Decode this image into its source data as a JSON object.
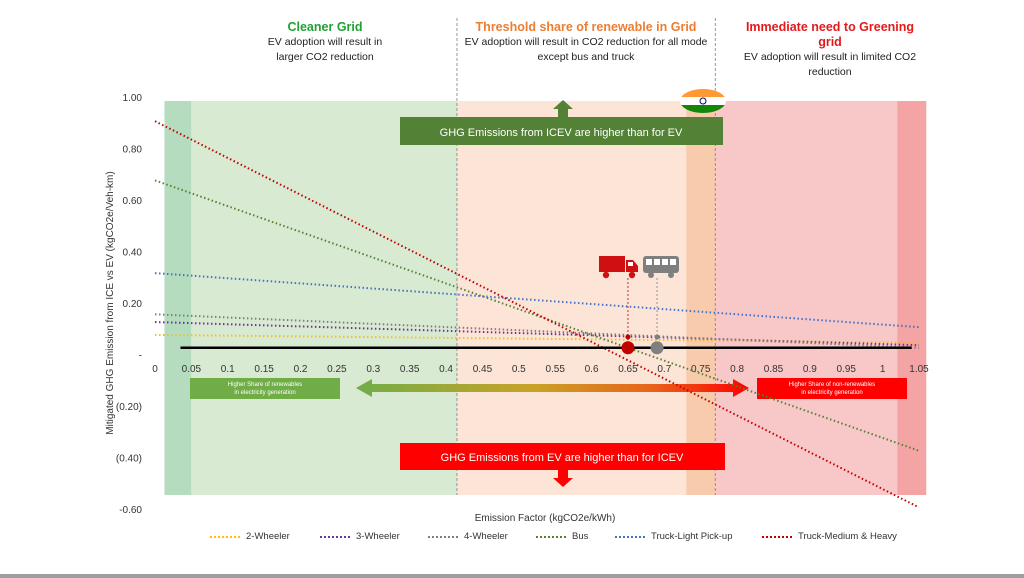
{
  "zones": {
    "clean": {
      "title": "Cleaner Grid",
      "desc1": "EV adoption will result in",
      "desc2": "larger CO2 reduction",
      "color": "#21a035"
    },
    "threshold": {
      "title": "Threshold share of renewable in Grid",
      "desc1": "EV adoption will result in CO2 reduction for all mode",
      "desc2": "except bus and truck",
      "color": "#ed7d31"
    },
    "immediate": {
      "title1": "Immediate need to Greening",
      "title2": "grid",
      "desc1": "EV adoption will result in limited CO2",
      "desc2": "reduction",
      "color": "#e31a1c"
    }
  },
  "banners": {
    "top": "GHG Emissions from ICEV are higher than for EV",
    "bottom": "GHG Emissions from EV are higher than for ICEV",
    "left": [
      "Higher Share of renewables",
      "in electricity generation"
    ],
    "right": [
      "Higher Share of non-renewables",
      "in electricity generation"
    ]
  },
  "colors": {
    "green_band": "#d9ead3",
    "green_dark_band": "#b5dcbf",
    "peach_band": "#fce4d6",
    "orange_band": "#f8cbad",
    "pink_band": "#f8c8c8",
    "red_band": "#f4a4a4",
    "banner_green": "#538135",
    "banner_red": "#ff0000",
    "small_green": "#70ad47"
  },
  "icons": [
    "india-flag-icon",
    "truck-icon",
    "bus-icon"
  ],
  "markers": {
    "truck_x": 0.65,
    "bus_x": 0.69
  },
  "chart_data": {
    "type": "line",
    "xlabel": "Emission Factor (kgCO2e/kWh)",
    "ylabel": "Mitigated GHG Emission from ICE vs EV (kgCO2e/Veh-km)",
    "xlim": [
      0,
      1.05
    ],
    "ylim": [
      -0.6,
      1.0
    ],
    "x_ticks": [
      "0",
      "0.05",
      "0.1",
      "0.15",
      "0.2",
      "0.25",
      "0.3",
      "0.35",
      "0.4",
      "0.45",
      "0.5",
      "0.55",
      "0.6",
      "0.65",
      "0.7",
      "0.75",
      "0.8",
      "0.85",
      "0.9",
      "0.95",
      "1",
      "1.05"
    ],
    "y_ticks": [
      {
        "value": 1.0,
        "label": "1.00"
      },
      {
        "value": 0.8,
        "label": "0.80"
      },
      {
        "value": 0.6,
        "label": "0.60"
      },
      {
        "value": 0.4,
        "label": "0.40"
      },
      {
        "value": 0.2,
        "label": "0.20"
      },
      {
        "value": 0.0,
        "label": "-"
      },
      {
        "value": -0.2,
        "label": "(0.20)"
      },
      {
        "value": -0.4,
        "label": "(0.40)"
      },
      {
        "value": -0.6,
        "label": "-0.60"
      }
    ],
    "zones": [
      {
        "from": 0.013,
        "to": 0.05,
        "kind": "green_dark_band"
      },
      {
        "from": 0.05,
        "to": 0.415,
        "kind": "green_band"
      },
      {
        "from": 0.415,
        "to": 0.73,
        "kind": "peach_band"
      },
      {
        "from": 0.73,
        "to": 0.77,
        "kind": "orange_band"
      },
      {
        "from": 0.77,
        "to": 1.02,
        "kind": "pink_band"
      },
      {
        "from": 1.02,
        "to": 1.06,
        "kind": "red_band"
      }
    ],
    "zone_dividers": [
      0.415,
      0.77
    ],
    "series": [
      {
        "name": "2-Wheeler",
        "color": "#ffc000",
        "x": [
          0,
          1.05
        ],
        "y": [
          0.08,
          0.05
        ]
      },
      {
        "name": "3-Wheeler",
        "color": "#7030a0",
        "x": [
          0,
          1.05
        ],
        "y": [
          0.13,
          0.04
        ]
      },
      {
        "name": "4-Wheeler",
        "color": "#7f7f7f",
        "x": [
          0,
          1.05
        ],
        "y": [
          0.16,
          0.03
        ]
      },
      {
        "name": "Bus",
        "color": "#548235",
        "x": [
          0,
          1.05
        ],
        "y": [
          0.68,
          -0.37
        ]
      },
      {
        "name": "Truck-Light Pick-up",
        "color": "#4472c4",
        "x": [
          0,
          1.05
        ],
        "y": [
          0.32,
          0.11
        ]
      },
      {
        "name": "Truck-Medium & Heavy",
        "color": "#c00000",
        "x": [
          0,
          1.05
        ],
        "y": [
          0.91,
          -0.59
        ]
      }
    ],
    "baseline": {
      "from": 0.035,
      "to": 1.04,
      "y": 0.03
    }
  }
}
